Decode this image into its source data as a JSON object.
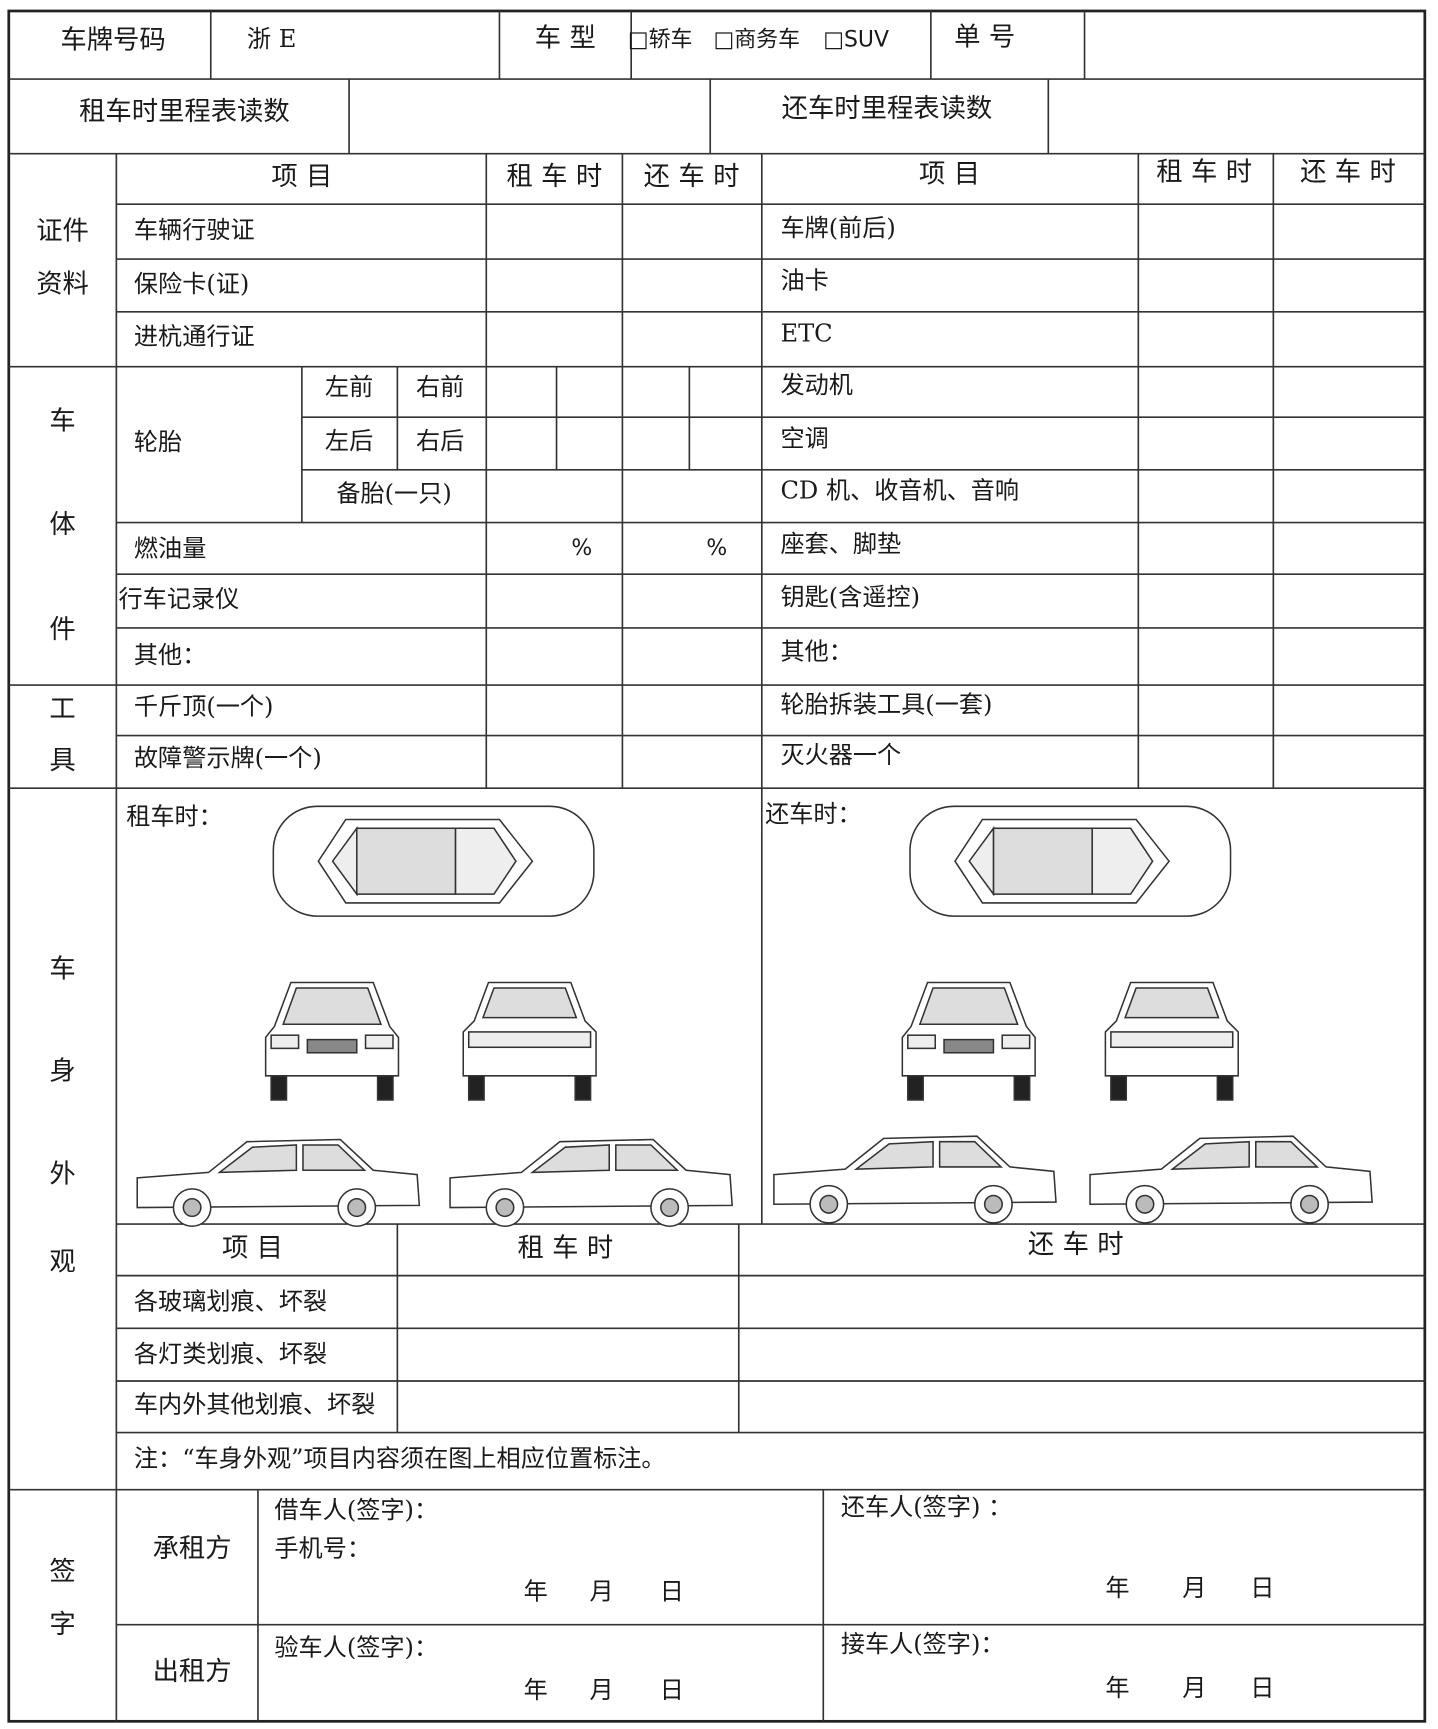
{
  "header": {
    "plate_label": "车牌号码",
    "plate_value": "浙 E",
    "type_label": "车 型",
    "type_options": [
      "□轿车",
      "□商务车",
      "□SUV"
    ],
    "number_label": "单 号",
    "odo_out": "租车时里程表读数",
    "odo_in": "还车时里程表读数"
  },
  "columns": {
    "item": "项 目",
    "out": "租 车 时",
    "in": "还 车 时"
  },
  "documents": {
    "label": [
      "证件",
      "资料"
    ],
    "left": [
      "车辆行驶证",
      "保险卡(证)",
      "进杭通行证"
    ],
    "right": [
      "车牌(前后)",
      "油卡",
      "ETC"
    ]
  },
  "body": {
    "label": [
      "车",
      "体",
      "件"
    ],
    "tire": "轮胎",
    "tire_positions": [
      "左前",
      "右前",
      "左后",
      "右后"
    ],
    "spare": "备胎(一只)",
    "left": [
      "燃油量",
      "行车记录仪",
      "其他："
    ],
    "percent": "%",
    "right": [
      "发动机",
      "空调",
      "CD 机、收音机、音响",
      "座套、脚垫",
      "钥匙(含遥控)",
      "其他："
    ]
  },
  "tools": {
    "label": [
      "工",
      "具"
    ],
    "left": [
      "千斤顶(一个)",
      "故障警示牌(一个)"
    ],
    "right": [
      "轮胎拆装工具(一套)",
      "灭火器一个"
    ]
  },
  "exterior": {
    "label": [
      "车",
      "身",
      "外",
      "观"
    ],
    "out_caption": "租车时：",
    "in_caption": "还车时：",
    "items": [
      "各玻璃划痕、坏裂",
      "各灯类划痕、坏裂",
      "车内外其他划痕、坏裂"
    ],
    "note": "注：“车身外观”项目内容须在图上相应位置标注。"
  },
  "signature": {
    "label": [
      "签",
      "字"
    ],
    "lessee": "承租方",
    "lessor": "出租方",
    "borrower": "借车人(签字)：",
    "phone": "手机号：",
    "returner": "还车人(签字) ：",
    "inspector": "验车人(签字)：",
    "receiver": "接车人(签字)：",
    "date": [
      "年",
      "月",
      "日"
    ]
  }
}
